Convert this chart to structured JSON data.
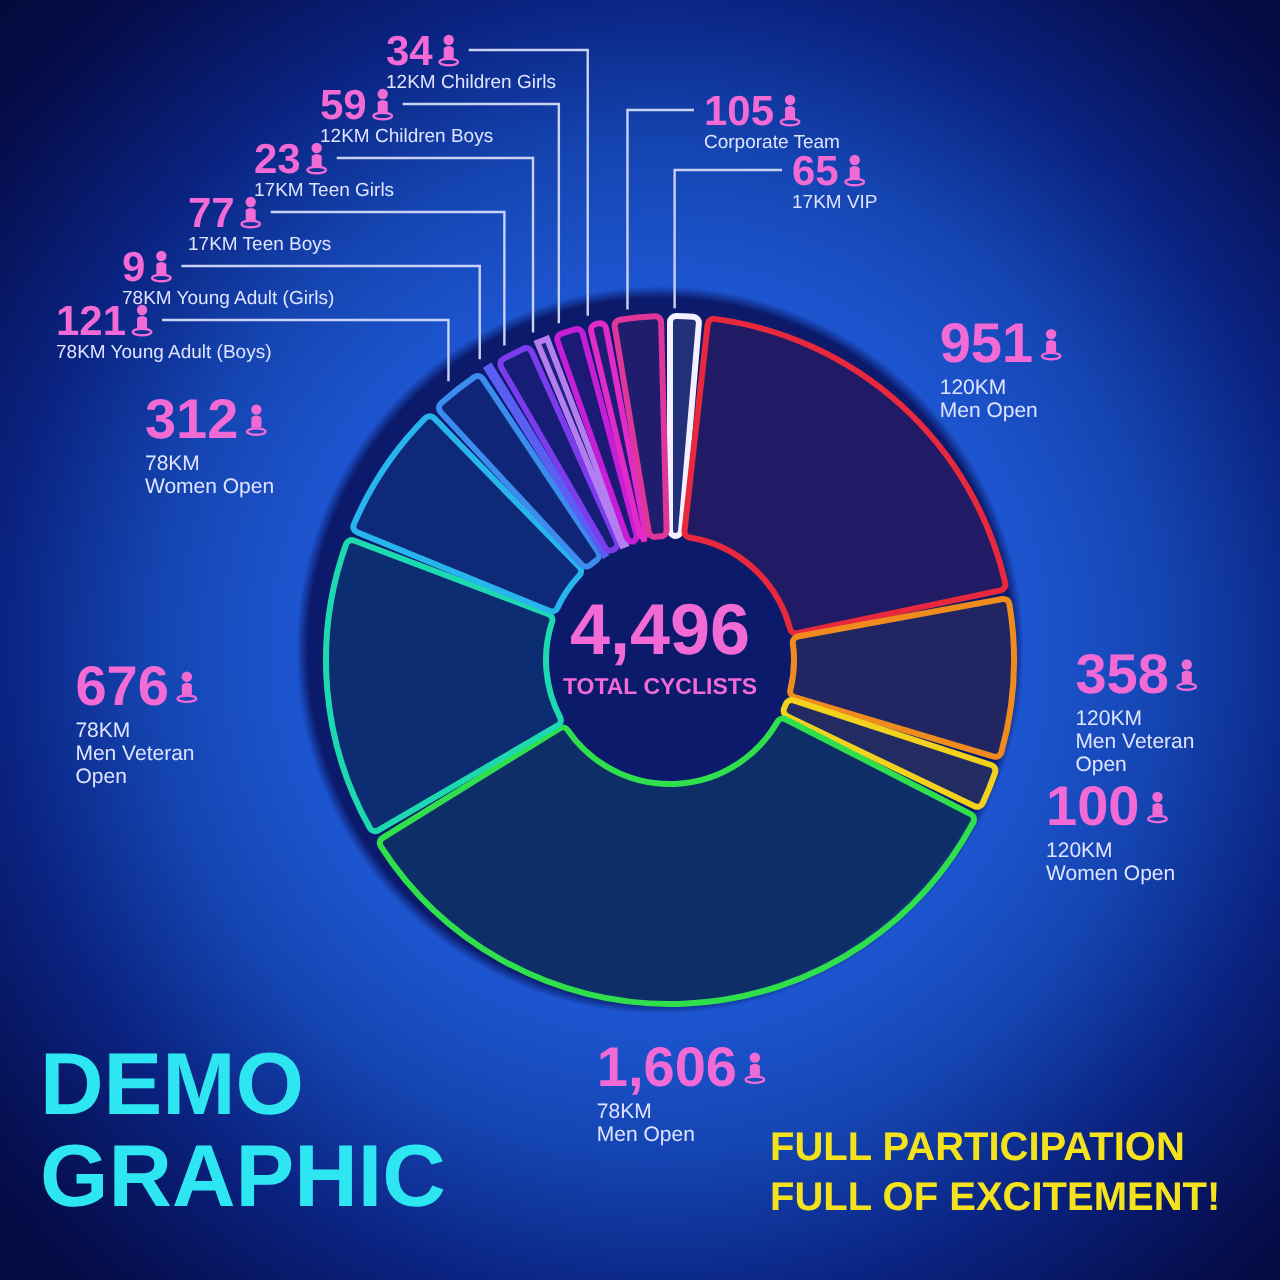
{
  "chart_data": {
    "type": "donut",
    "title": "DEMO GRAPHIC",
    "categories": [
      "17KM VIP",
      "120KM Men Open",
      "120KM Men Veteran Open",
      "120KM Women Open",
      "78KM Men Open",
      "78KM Men Veteran Open",
      "78KM Women Open",
      "78KM Young Adult (Boys)",
      "78KM Young Adult (Girls)",
      "17KM Teen Boys",
      "17KM Teen Girls",
      "12KM Children Boys",
      "12KM Children Girls",
      "Corporate Team"
    ],
    "values": [
      65,
      951,
      358,
      100,
      1606,
      676,
      312,
      121,
      9,
      77,
      23,
      59,
      34,
      105
    ],
    "value_labels": [
      "65",
      "951",
      "358",
      "100",
      "1,606",
      "676",
      "312",
      "121",
      "9",
      "77",
      "23",
      "59",
      "34",
      "105"
    ],
    "colors": [
      "#f4f0ff",
      "#e8283c",
      "#f08c1e",
      "#f2d21c",
      "#2fe04c",
      "#1ed8b0",
      "#28b4ec",
      "#3c8cf0",
      "#5a5ef2",
      "#7c3cec",
      "#b47ef0",
      "#c41ed6",
      "#e22ac8",
      "#e0369a"
    ],
    "annotations": [
      "4,496",
      "TOTAL CYCLISTS",
      "FULL PARTICIPATION FULL OF EXCITEMENT!"
    ]
  }
}
